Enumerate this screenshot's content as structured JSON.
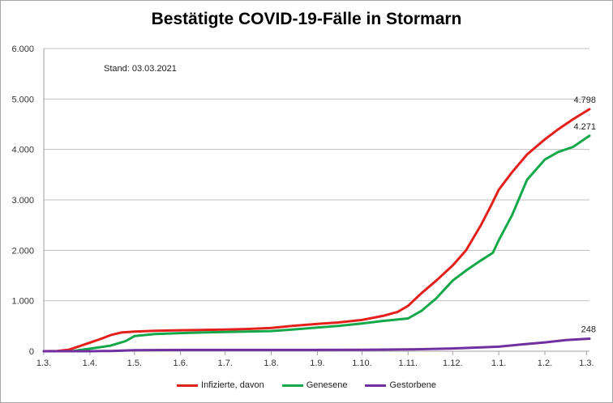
{
  "chart_data": {
    "type": "line",
    "title": "Bestätigte COVID-19-Fälle in Stormarn",
    "annotation": "Stand: 03.03.2021",
    "ylim": [
      0,
      6000
    ],
    "yticks": [
      "0",
      "1.000",
      "2.000",
      "3.000",
      "4.000",
      "5.000",
      "6.000"
    ],
    "ytick_values": [
      0,
      1000,
      2000,
      3000,
      4000,
      5000,
      6000
    ],
    "xticks": [
      "1.3.",
      "1.4.",
      "1.5.",
      "1.6.",
      "1.7.",
      "1.8.",
      "1.9.",
      "1.10.",
      "1.11.",
      "1.12.",
      "1.1.",
      "1.2.",
      "1.3."
    ],
    "xtick_dates": [
      "2020-03-01",
      "2020-04-01",
      "2020-05-01",
      "2020-06-01",
      "2020-07-01",
      "2020-08-01",
      "2020-09-01",
      "2020-10-01",
      "2020-11-01",
      "2020-12-01",
      "2021-01-01",
      "2021-02-01",
      "2021-03-01"
    ],
    "xlim": [
      "2020-03-01",
      "2021-03-03"
    ],
    "grid": "horizontal",
    "legend_position": "bottom",
    "series": [
      {
        "name": "Infizierte, davon",
        "color": "#e3211c",
        "end_label": "4.798",
        "points": [
          [
            "2020-03-01",
            0
          ],
          [
            "2020-03-10",
            5
          ],
          [
            "2020-03-18",
            30
          ],
          [
            "2020-03-25",
            100
          ],
          [
            "2020-04-01",
            170
          ],
          [
            "2020-04-08",
            240
          ],
          [
            "2020-04-15",
            320
          ],
          [
            "2020-04-22",
            370
          ],
          [
            "2020-05-01",
            390
          ],
          [
            "2020-05-15",
            405
          ],
          [
            "2020-06-01",
            415
          ],
          [
            "2020-06-15",
            420
          ],
          [
            "2020-07-01",
            430
          ],
          [
            "2020-07-15",
            440
          ],
          [
            "2020-08-01",
            460
          ],
          [
            "2020-08-15",
            500
          ],
          [
            "2020-09-01",
            540
          ],
          [
            "2020-09-15",
            570
          ],
          [
            "2020-10-01",
            620
          ],
          [
            "2020-10-15",
            700
          ],
          [
            "2020-10-25",
            780
          ],
          [
            "2020-11-01",
            900
          ],
          [
            "2020-11-10",
            1150
          ],
          [
            "2020-11-20",
            1400
          ],
          [
            "2020-12-01",
            1700
          ],
          [
            "2020-12-10",
            2000
          ],
          [
            "2020-12-20",
            2500
          ],
          [
            "2020-12-27",
            2900
          ],
          [
            "2021-01-01",
            3200
          ],
          [
            "2021-01-10",
            3550
          ],
          [
            "2021-01-20",
            3900
          ],
          [
            "2021-02-01",
            4200
          ],
          [
            "2021-02-10",
            4400
          ],
          [
            "2021-02-20",
            4600
          ],
          [
            "2021-03-03",
            4798
          ]
        ]
      },
      {
        "name": "Genesene",
        "color": "#14a84b",
        "end_label": "4.271",
        "points": [
          [
            "2020-03-01",
            0
          ],
          [
            "2020-03-20",
            0
          ],
          [
            "2020-04-01",
            50
          ],
          [
            "2020-04-15",
            110
          ],
          [
            "2020-04-25",
            200
          ],
          [
            "2020-05-01",
            300
          ],
          [
            "2020-05-15",
            340
          ],
          [
            "2020-06-01",
            360
          ],
          [
            "2020-06-15",
            370
          ],
          [
            "2020-07-01",
            380
          ],
          [
            "2020-07-15",
            390
          ],
          [
            "2020-08-01",
            400
          ],
          [
            "2020-08-15",
            430
          ],
          [
            "2020-09-01",
            470
          ],
          [
            "2020-09-15",
            500
          ],
          [
            "2020-10-01",
            550
          ],
          [
            "2020-10-15",
            600
          ],
          [
            "2020-11-01",
            650
          ],
          [
            "2020-11-10",
            800
          ],
          [
            "2020-11-20",
            1050
          ],
          [
            "2020-12-01",
            1400
          ],
          [
            "2020-12-10",
            1600
          ],
          [
            "2020-12-20",
            1800
          ],
          [
            "2020-12-28",
            1950
          ],
          [
            "2021-01-01",
            2200
          ],
          [
            "2021-01-10",
            2700
          ],
          [
            "2021-01-20",
            3400
          ],
          [
            "2021-02-01",
            3800
          ],
          [
            "2021-02-10",
            3950
          ],
          [
            "2021-02-20",
            4050
          ],
          [
            "2021-03-03",
            4271
          ]
        ]
      },
      {
        "name": "Gestorbene",
        "color": "#7030a0",
        "end_label": "248",
        "points": [
          [
            "2020-03-01",
            0
          ],
          [
            "2020-04-01",
            0
          ],
          [
            "2020-04-15",
            5
          ],
          [
            "2020-05-01",
            20
          ],
          [
            "2020-06-01",
            25
          ],
          [
            "2020-08-01",
            26
          ],
          [
            "2020-10-01",
            28
          ],
          [
            "2020-11-01",
            35
          ],
          [
            "2020-12-01",
            55
          ],
          [
            "2020-12-15",
            70
          ],
          [
            "2021-01-01",
            90
          ],
          [
            "2021-01-15",
            130
          ],
          [
            "2021-02-01",
            175
          ],
          [
            "2021-02-15",
            220
          ],
          [
            "2021-03-03",
            248
          ]
        ]
      }
    ]
  }
}
